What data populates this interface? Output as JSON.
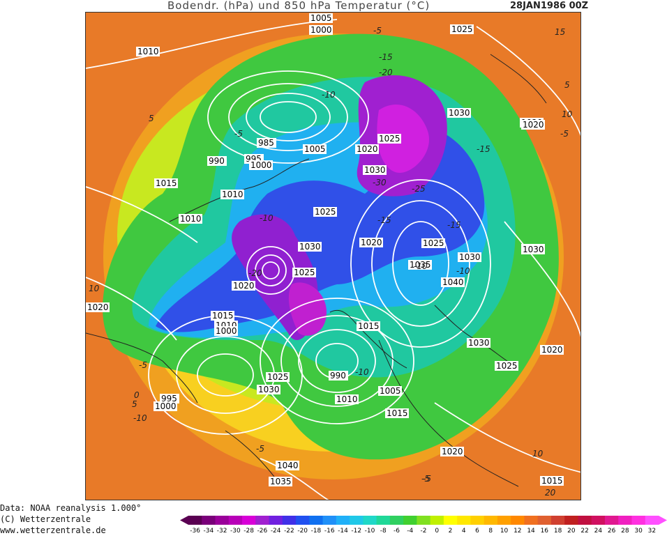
{
  "header": {
    "title": "Bodendr. (hPa) und 850 hPa Temperatur (°C)",
    "date": "28JAN1986 00Z"
  },
  "credits": {
    "line1": "Data: NOAA reanalysis 1.000°",
    "line2": "(C) Wetterzentrale",
    "line3": "www.wetterzentrale.de"
  },
  "legend": {
    "ticks": [
      "-36",
      "-34",
      "-32",
      "-30",
      "-28",
      "-26",
      "-24",
      "-22",
      "-20",
      "-18",
      "-16",
      "-14",
      "-12",
      "-10",
      "-8",
      "-6",
      "-4",
      "-2",
      "0",
      "2",
      "4",
      "6",
      "8",
      "10",
      "12",
      "14",
      "16",
      "18",
      "20",
      "22",
      "24",
      "26",
      "28",
      "30",
      "32"
    ],
    "colors": [
      "#5a0052",
      "#7a007a",
      "#9a009a",
      "#b800b8",
      "#d800d8",
      "#a020d0",
      "#7020e0",
      "#4030e8",
      "#2050f0",
      "#1070f0",
      "#2090f8",
      "#20b0f8",
      "#20c8e8",
      "#20d8c8",
      "#20d898",
      "#30d060",
      "#40d030",
      "#80e020",
      "#c0f000",
      "#ffff00",
      "#ffe800",
      "#ffd000",
      "#ffb800",
      "#ffa000",
      "#ff8800",
      "#f07020",
      "#e06030",
      "#d04030",
      "#c02020",
      "#c01040",
      "#d01060",
      "#e01890",
      "#f020c0",
      "#ff30e0",
      "#ff50ff"
    ]
  },
  "map": {
    "pressure_labels": [
      "1005",
      "1000",
      "1025",
      "1010",
      "1030",
      "1020",
      "985",
      "1005",
      "1020",
      "1025",
      "990",
      "995",
      "1000",
      "1030",
      "1015",
      "1010",
      "1025",
      "1010",
      "1020",
      "1030",
      "1025",
      "1035",
      "1030",
      "1040",
      "1025",
      "1020",
      "1030",
      "1015",
      "1010",
      "1000",
      "1020",
      "1025",
      "1020",
      "1020",
      "1030",
      "1025",
      "990",
      "1010",
      "1005",
      "1015",
      "1030",
      "995",
      "1000",
      "1015",
      "1040",
      "1035",
      "1020",
      "1015",
      "1030",
      "1015"
    ],
    "temp_labels": [
      "-5",
      "15",
      "-15",
      "-10",
      "-20",
      "-25",
      "-30",
      "-15",
      "-10",
      "5",
      "-5",
      "10",
      "-5",
      "5",
      "-10",
      "-15",
      "-15",
      "-10",
      "-20",
      "-10",
      "-5",
      "-5",
      "0",
      "10",
      "-5",
      "5",
      "10",
      "-10",
      "-5",
      "20"
    ]
  }
}
